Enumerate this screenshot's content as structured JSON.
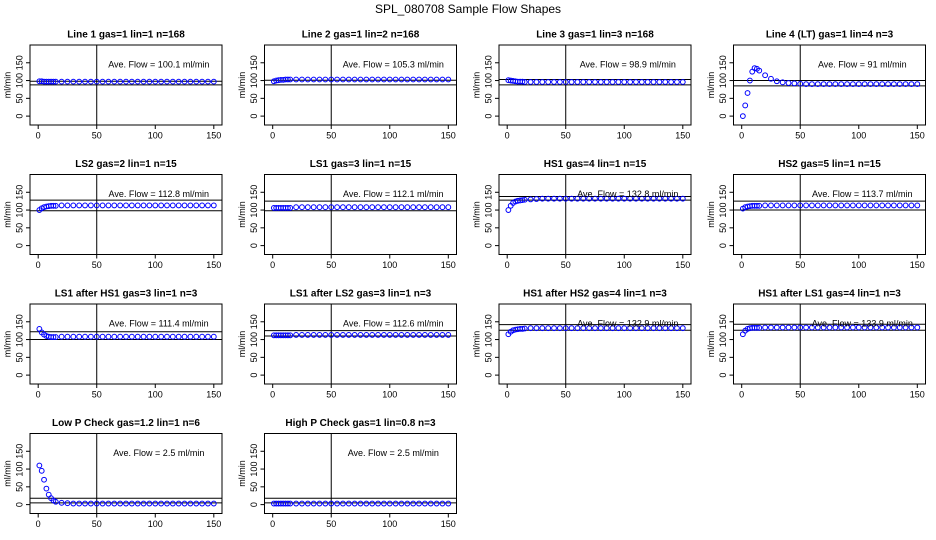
{
  "title": "SPL_080708  Sample Flow Shapes",
  "chart_data": [
    {
      "type": "scatter",
      "title": "Line 1 gas=1 lin=1 n=168",
      "annotation": "Ave. Flow =  100.1  ml/min",
      "y_label": "ml/min",
      "color": "#0000ff",
      "x": [
        1,
        3,
        5,
        7,
        9,
        11,
        13,
        15,
        20,
        25,
        30,
        35,
        40,
        45,
        50,
        55,
        60,
        65,
        70,
        75,
        80,
        85,
        90,
        95,
        100,
        105,
        110,
        115,
        120,
        125,
        130,
        135,
        140,
        145,
        150
      ],
      "values": [
        98,
        98,
        97,
        97,
        97,
        97,
        97,
        97,
        97,
        97,
        97,
        97,
        97,
        97,
        97,
        97,
        97,
        97,
        97,
        97,
        97,
        97,
        97,
        97,
        97,
        97,
        97,
        97,
        97,
        97,
        97,
        97,
        97,
        97,
        97
      ],
      "xlim": [
        -7,
        157
      ],
      "ylim": [
        -25,
        200
      ],
      "xticks": [
        0,
        50,
        100,
        150
      ],
      "yticks": [
        0,
        50,
        100,
        150
      ],
      "hlines": [
        98,
        88
      ],
      "vline": 50
    },
    {
      "type": "scatter",
      "title": "Line 2 gas=1 lin=2 n=168",
      "annotation": "Ave. Flow =  105.3  ml/min",
      "y_label": "ml/min",
      "color": "#0000ff",
      "x": [
        1,
        3,
        5,
        7,
        9,
        11,
        13,
        15,
        20,
        25,
        30,
        35,
        40,
        45,
        50,
        55,
        60,
        65,
        70,
        75,
        80,
        85,
        90,
        95,
        100,
        105,
        110,
        115,
        120,
        125,
        130,
        135,
        140,
        145,
        150
      ],
      "values": [
        98,
        100,
        101,
        102,
        102,
        103,
        103,
        103,
        103,
        103,
        103,
        103,
        103,
        103,
        103,
        103,
        103,
        103,
        103,
        103,
        103,
        103,
        103,
        103,
        103,
        103,
        103,
        103,
        103,
        103,
        103,
        103,
        103,
        103,
        103
      ],
      "xlim": [
        -7,
        157
      ],
      "ylim": [
        -25,
        200
      ],
      "xticks": [
        0,
        50,
        100,
        150
      ],
      "yticks": [
        0,
        50,
        100,
        150
      ],
      "hlines": [
        101,
        88
      ],
      "vline": 50
    },
    {
      "type": "scatter",
      "title": "Line 3 gas=1 lin=3 n=168",
      "annotation": "Ave. Flow =  98.9  ml/min",
      "y_label": "ml/min",
      "color": "#0000ff",
      "x": [
        1,
        3,
        5,
        7,
        9,
        11,
        13,
        15,
        20,
        25,
        30,
        35,
        40,
        45,
        50,
        55,
        60,
        65,
        70,
        75,
        80,
        85,
        90,
        95,
        100,
        105,
        110,
        115,
        120,
        125,
        130,
        135,
        140,
        145,
        150
      ],
      "values": [
        101,
        100,
        99,
        98,
        97,
        97,
        97,
        96,
        96,
        96,
        96,
        96,
        96,
        96,
        96,
        96,
        96,
        96,
        96,
        96,
        96,
        96,
        96,
        96,
        96,
        96,
        96,
        96,
        96,
        96,
        96,
        96,
        96,
        96,
        96
      ],
      "xlim": [
        -7,
        157
      ],
      "ylim": [
        -25,
        200
      ],
      "xticks": [
        0,
        50,
        100,
        150
      ],
      "yticks": [
        0,
        50,
        100,
        150
      ],
      "hlines": [
        103,
        88
      ],
      "vline": 50
    },
    {
      "type": "scatter",
      "title": "Line 4 (LT) gas=1 lin=4 n=3",
      "annotation": "Ave. Flow =  91  ml/min",
      "y_label": "ml/min",
      "color": "#0000ff",
      "x": [
        1,
        3,
        5,
        7,
        9,
        11,
        13,
        15,
        20,
        25,
        30,
        35,
        40,
        45,
        50,
        55,
        60,
        65,
        70,
        75,
        80,
        85,
        90,
        95,
        100,
        105,
        110,
        115,
        120,
        125,
        130,
        135,
        140,
        145,
        150
      ],
      "values": [
        0,
        30,
        65,
        100,
        125,
        135,
        133,
        128,
        115,
        105,
        98,
        95,
        93,
        92,
        91,
        90,
        90,
        90,
        90,
        90,
        90,
        90,
        90,
        90,
        90,
        90,
        90,
        90,
        90,
        90,
        90,
        90,
        90,
        90,
        90
      ],
      "xlim": [
        -7,
        157
      ],
      "ylim": [
        -25,
        200
      ],
      "xticks": [
        0,
        50,
        100,
        150
      ],
      "yticks": [
        0,
        50,
        100,
        150
      ],
      "hlines": [
        100,
        85
      ],
      "vline": 50
    },
    {
      "type": "scatter",
      "title": "LS2 gas=2 lin=1 n=15",
      "annotation": "Ave. Flow =  112.8  ml/min",
      "y_label": "ml/min",
      "color": "#0000ff",
      "x": [
        1,
        3,
        5,
        7,
        9,
        11,
        13,
        15,
        20,
        25,
        30,
        35,
        40,
        45,
        50,
        55,
        60,
        65,
        70,
        75,
        80,
        85,
        90,
        95,
        100,
        105,
        110,
        115,
        120,
        125,
        130,
        135,
        140,
        145,
        150
      ],
      "values": [
        100,
        105,
        108,
        110,
        111,
        112,
        112,
        112,
        113,
        113,
        113,
        113,
        113,
        113,
        113,
        113,
        113,
        113,
        113,
        113,
        113,
        113,
        113,
        113,
        113,
        113,
        113,
        113,
        113,
        113,
        113,
        113,
        113,
        113,
        113
      ],
      "xlim": [
        -7,
        157
      ],
      "ylim": [
        -25,
        200
      ],
      "xticks": [
        0,
        50,
        100,
        150
      ],
      "yticks": [
        0,
        50,
        100,
        150
      ],
      "hlines": [
        128,
        98
      ],
      "vline": 50
    },
    {
      "type": "scatter",
      "title": "LS1 gas=3 lin=1 n=15",
      "annotation": "Ave. Flow =  112.1  ml/min",
      "y_label": "ml/min",
      "color": "#0000ff",
      "x": [
        1,
        3,
        5,
        7,
        9,
        11,
        13,
        15,
        20,
        25,
        30,
        35,
        40,
        45,
        50,
        55,
        60,
        65,
        70,
        75,
        80,
        85,
        90,
        95,
        100,
        105,
        110,
        115,
        120,
        125,
        130,
        135,
        140,
        145,
        150
      ],
      "values": [
        106,
        106,
        106,
        106,
        106,
        106,
        106,
        106,
        108,
        108,
        108,
        108,
        108,
        108,
        108,
        108,
        108,
        108,
        108,
        108,
        108,
        108,
        108,
        108,
        108,
        108,
        108,
        108,
        108,
        108,
        108,
        108,
        108,
        108,
        108
      ],
      "xlim": [
        -7,
        157
      ],
      "ylim": [
        -25,
        200
      ],
      "xticks": [
        0,
        50,
        100,
        150
      ],
      "yticks": [
        0,
        50,
        100,
        150
      ],
      "hlines": [
        125,
        98
      ],
      "vline": 50
    },
    {
      "type": "scatter",
      "title": "HS1 gas=4 lin=1 n=15",
      "annotation": "Ave. Flow =  132.8  ml/min",
      "y_label": "ml/min",
      "color": "#0000ff",
      "x": [
        1,
        3,
        5,
        7,
        9,
        11,
        13,
        15,
        20,
        25,
        30,
        35,
        40,
        45,
        50,
        55,
        60,
        65,
        70,
        75,
        80,
        85,
        90,
        95,
        100,
        105,
        110,
        115,
        120,
        125,
        130,
        135,
        140,
        145,
        150
      ],
      "values": [
        100,
        112,
        120,
        124,
        126,
        127,
        128,
        129,
        130,
        131,
        132,
        132,
        132,
        132,
        132,
        132,
        132,
        132,
        132,
        132,
        132,
        132,
        132,
        132,
        132,
        132,
        132,
        132,
        132,
        132,
        132,
        132,
        132,
        132,
        132
      ],
      "xlim": [
        -7,
        157
      ],
      "ylim": [
        -25,
        200
      ],
      "xticks": [
        0,
        50,
        100,
        150
      ],
      "yticks": [
        0,
        50,
        100,
        150
      ],
      "hlines": [
        138,
        128
      ],
      "vline": 50
    },
    {
      "type": "scatter",
      "title": "HS2 gas=5 lin=1 n=15",
      "annotation": "Ave. Flow =  113.7  ml/min",
      "y_label": "ml/min",
      "color": "#0000ff",
      "x": [
        1,
        3,
        5,
        7,
        9,
        11,
        13,
        15,
        20,
        25,
        30,
        35,
        40,
        45,
        50,
        55,
        60,
        65,
        70,
        75,
        80,
        85,
        90,
        95,
        100,
        105,
        110,
        115,
        120,
        125,
        130,
        135,
        140,
        145,
        150
      ],
      "values": [
        104,
        108,
        110,
        111,
        112,
        112,
        112,
        112,
        113,
        113,
        113,
        113,
        113,
        113,
        113,
        113,
        113,
        113,
        113,
        113,
        113,
        113,
        113,
        113,
        113,
        113,
        113,
        113,
        113,
        113,
        113,
        113,
        113,
        113,
        113
      ],
      "xlim": [
        -7,
        157
      ],
      "ylim": [
        -25,
        200
      ],
      "xticks": [
        0,
        50,
        100,
        150
      ],
      "yticks": [
        0,
        50,
        100,
        150
      ],
      "hlines": [
        125,
        100
      ],
      "vline": 50
    },
    {
      "type": "scatter",
      "title": "LS1 after HS1 gas=3 lin=1 n=3",
      "annotation": "Ave. Flow =  111.4  ml/min",
      "y_label": "ml/min",
      "color": "#0000ff",
      "x": [
        1,
        3,
        5,
        7,
        9,
        11,
        13,
        15,
        20,
        25,
        30,
        35,
        40,
        45,
        50,
        55,
        60,
        65,
        70,
        75,
        80,
        85,
        90,
        95,
        100,
        105,
        110,
        115,
        120,
        125,
        130,
        135,
        140,
        145,
        150
      ],
      "values": [
        130,
        120,
        114,
        110,
        108,
        107,
        107,
        107,
        108,
        108,
        108,
        108,
        108,
        108,
        108,
        108,
        108,
        108,
        108,
        108,
        108,
        108,
        108,
        108,
        108,
        108,
        108,
        108,
        108,
        108,
        108,
        108,
        108,
        108,
        108
      ],
      "xlim": [
        -7,
        157
      ],
      "ylim": [
        -25,
        200
      ],
      "xticks": [
        0,
        50,
        100,
        150
      ],
      "yticks": [
        0,
        50,
        100,
        150
      ],
      "hlines": [
        122,
        100
      ],
      "vline": 50
    },
    {
      "type": "scatter",
      "title": "LS1 after LS2 gas=3 lin=1 n=3",
      "annotation": "Ave. Flow =  112.6  ml/min",
      "y_label": "ml/min",
      "color": "#0000ff",
      "x": [
        1,
        3,
        5,
        7,
        9,
        11,
        13,
        15,
        20,
        25,
        30,
        35,
        40,
        45,
        50,
        55,
        60,
        65,
        70,
        75,
        80,
        85,
        90,
        95,
        100,
        105,
        110,
        115,
        120,
        125,
        130,
        135,
        140,
        145,
        150
      ],
      "values": [
        112,
        112,
        112,
        112,
        112,
        112,
        112,
        112,
        113,
        113,
        113,
        113,
        113,
        113,
        113,
        113,
        113,
        113,
        113,
        113,
        113,
        113,
        113,
        113,
        113,
        113,
        113,
        113,
        113,
        113,
        113,
        113,
        113,
        113,
        113
      ],
      "xlim": [
        -7,
        157
      ],
      "ylim": [
        -25,
        200
      ],
      "xticks": [
        0,
        50,
        100,
        150
      ],
      "yticks": [
        0,
        50,
        100,
        150
      ],
      "hlines": [
        125,
        110
      ],
      "vline": 50
    },
    {
      "type": "scatter",
      "title": "HS1 after HS2 gas=4 lin=1 n=3",
      "annotation": "Ave. Flow =  132.9  ml/min",
      "y_label": "ml/min",
      "color": "#0000ff",
      "x": [
        1,
        3,
        5,
        7,
        9,
        11,
        13,
        15,
        20,
        25,
        30,
        35,
        40,
        45,
        50,
        55,
        60,
        65,
        70,
        75,
        80,
        85,
        90,
        95,
        100,
        105,
        110,
        115,
        120,
        125,
        130,
        135,
        140,
        145,
        150
      ],
      "values": [
        115,
        122,
        126,
        128,
        129,
        130,
        130,
        131,
        132,
        132,
        132,
        132,
        132,
        132,
        132,
        132,
        132,
        132,
        132,
        132,
        132,
        132,
        132,
        132,
        132,
        132,
        132,
        132,
        132,
        132,
        132,
        132,
        132,
        132,
        132
      ],
      "xlim": [
        -7,
        157
      ],
      "ylim": [
        -25,
        200
      ],
      "xticks": [
        0,
        50,
        100,
        150
      ],
      "yticks": [
        0,
        50,
        100,
        150
      ],
      "hlines": [
        142,
        126
      ],
      "vline": 50
    },
    {
      "type": "scatter",
      "title": "HS1 after LS1 gas=4 lin=1 n=3",
      "annotation": "Ave. Flow =  133.9  ml/min",
      "y_label": "ml/min",
      "color": "#0000ff",
      "x": [
        1,
        3,
        5,
        7,
        9,
        11,
        13,
        15,
        20,
        25,
        30,
        35,
        40,
        45,
        50,
        55,
        60,
        65,
        70,
        75,
        80,
        85,
        90,
        95,
        100,
        105,
        110,
        115,
        120,
        125,
        130,
        135,
        140,
        145,
        150
      ],
      "values": [
        115,
        125,
        130,
        132,
        133,
        133,
        133,
        133,
        134,
        134,
        134,
        134,
        134,
        134,
        134,
        134,
        134,
        134,
        134,
        134,
        134,
        134,
        134,
        134,
        134,
        134,
        134,
        134,
        134,
        134,
        134,
        134,
        134,
        134,
        134
      ],
      "xlim": [
        -7,
        157
      ],
      "ylim": [
        -25,
        200
      ],
      "xticks": [
        0,
        50,
        100,
        150
      ],
      "yticks": [
        0,
        50,
        100,
        150
      ],
      "hlines": [
        143,
        126
      ],
      "vline": 50
    },
    {
      "type": "scatter",
      "title": "Low P Check gas=1.2 lin=1 n=6",
      "annotation": "Ave. Flow =  2.5  ml/min",
      "y_label": "ml/min",
      "color": "#0000ff",
      "x": [
        1,
        3,
        5,
        7,
        9,
        11,
        13,
        15,
        20,
        25,
        30,
        35,
        40,
        45,
        50,
        55,
        60,
        65,
        70,
        75,
        80,
        85,
        90,
        95,
        100,
        105,
        110,
        115,
        120,
        125,
        130,
        135,
        140,
        145,
        150
      ],
      "values": [
        110,
        95,
        70,
        45,
        28,
        18,
        12,
        8,
        5,
        4,
        3,
        3,
        3,
        3,
        3,
        3,
        3,
        3,
        3,
        3,
        3,
        3,
        3,
        3,
        3,
        3,
        3,
        3,
        3,
        3,
        3,
        3,
        3,
        3,
        3
      ],
      "xlim": [
        -7,
        157
      ],
      "ylim": [
        -25,
        200
      ],
      "xticks": [
        0,
        50,
        100,
        150
      ],
      "yticks": [
        0,
        50,
        100,
        150
      ],
      "hlines": [
        18,
        5
      ],
      "vline": 50
    },
    {
      "type": "scatter",
      "title": "High P Check gas=1 lin=0.8 n=3",
      "annotation": "Ave. Flow =  2.5  ml/min",
      "y_label": "ml/min",
      "color": "#0000ff",
      "x": [
        1,
        3,
        5,
        7,
        9,
        11,
        13,
        15,
        20,
        25,
        30,
        35,
        40,
        45,
        50,
        55,
        60,
        65,
        70,
        75,
        80,
        85,
        90,
        95,
        100,
        105,
        110,
        115,
        120,
        125,
        130,
        135,
        140,
        145,
        150
      ],
      "values": [
        3,
        3,
        3,
        3,
        3,
        3,
        3,
        3,
        3,
        3,
        3,
        3,
        3,
        3,
        3,
        3,
        3,
        3,
        3,
        3,
        3,
        3,
        3,
        3,
        3,
        3,
        3,
        3,
        3,
        3,
        3,
        3,
        3,
        3,
        3
      ],
      "xlim": [
        -7,
        157
      ],
      "ylim": [
        -25,
        200
      ],
      "xticks": [
        0,
        50,
        100,
        150
      ],
      "yticks": [
        0,
        50,
        100,
        150
      ],
      "hlines": [
        18,
        5
      ],
      "vline": 50
    }
  ]
}
